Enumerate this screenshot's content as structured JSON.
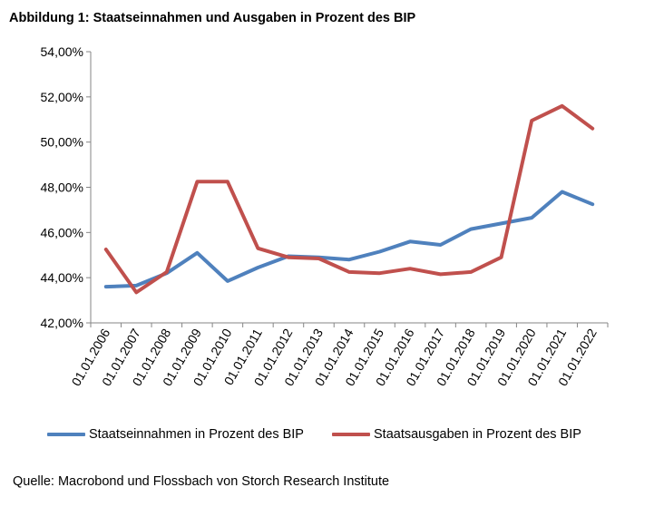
{
  "title": "Abbildung 1: Staatseinnahmen und Ausgaben in Prozent des BIP",
  "source": "Quelle: Macrobond und Flossbach von Storch Research Institute",
  "chart_data": {
    "type": "line",
    "title": "Abbildung 1: Staatseinnahmen und Ausgaben in Prozent des BIP",
    "xlabel": "",
    "ylabel": "",
    "x": [
      "01.01.2006",
      "01.01.2007",
      "01.01.2008",
      "01.01.2009",
      "01.01.2010",
      "01.01.2011",
      "01.01.2012",
      "01.01.2013",
      "01.01.2014",
      "01.01.2015",
      "01.01.2016",
      "01.01.2017",
      "01.01.2018",
      "01.01.2019",
      "01.01.2020",
      "01.01.2021",
      "01.01.2022"
    ],
    "ylim": [
      42,
      54
    ],
    "yticks": [
      "42,00%",
      "44,00%",
      "46,00%",
      "48,00%",
      "50,00%",
      "52,00%",
      "54,00%"
    ],
    "grid": false,
    "legend": "bottom",
    "series": [
      {
        "name": "Staatseinnahmen in Prozent des BIP",
        "color": "#4f81bd",
        "values": [
          43.6,
          43.65,
          44.2,
          45.1,
          43.85,
          44.45,
          44.95,
          44.9,
          44.8,
          45.15,
          45.6,
          45.45,
          46.15,
          46.4,
          46.65,
          47.8,
          47.25
        ]
      },
      {
        "name": "Staatsausgaben in Prozent des BIP",
        "color": "#c0504d",
        "values": [
          45.25,
          43.35,
          44.25,
          48.25,
          48.25,
          45.3,
          44.9,
          44.85,
          44.25,
          44.2,
          44.4,
          44.15,
          44.25,
          44.9,
          50.95,
          51.6,
          50.6
        ]
      }
    ]
  }
}
